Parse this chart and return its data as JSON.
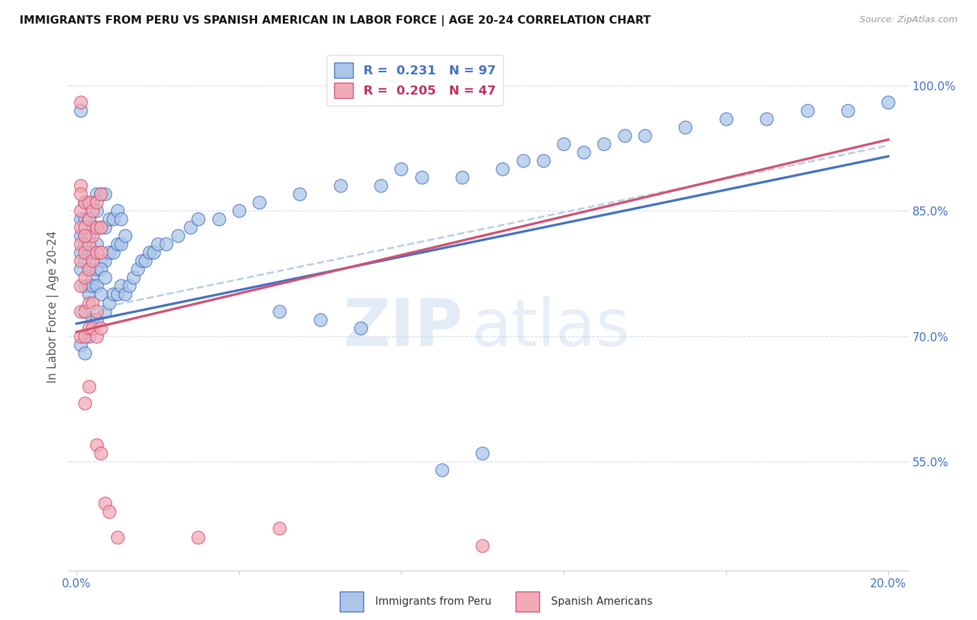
{
  "title": "IMMIGRANTS FROM PERU VS SPANISH AMERICAN IN LABOR FORCE | AGE 20-24 CORRELATION CHART",
  "source": "Source: ZipAtlas.com",
  "ylabel": "In Labor Force | Age 20-24",
  "xlim": [
    -0.002,
    0.205
  ],
  "ylim": [
    0.42,
    1.05
  ],
  "yticks": [
    0.55,
    0.7,
    0.85,
    1.0
  ],
  "ytick_labels": [
    "55.0%",
    "70.0%",
    "85.0%",
    "100.0%"
  ],
  "xtick_labels_left": "0.0%",
  "xtick_labels_right": "20.0%",
  "r_blue": 0.231,
  "n_blue": 97,
  "r_pink": 0.205,
  "n_pink": 47,
  "legend_label_blue": "Immigrants from Peru",
  "legend_label_pink": "Spanish Americans",
  "blue_fill": "#adc6e8",
  "blue_edge": "#4472c4",
  "pink_fill": "#f2aab8",
  "pink_edge": "#d45070",
  "line_blue_color": "#4472c4",
  "line_pink_color": "#d45070",
  "line_dashed_color": "#b8cfe8",
  "line_y0_blue": 0.715,
  "line_y1_blue": 0.915,
  "line_y0_pink": 0.705,
  "line_y1_pink": 0.935,
  "line_y0_dash": 0.728,
  "line_y1_dash": 0.928,
  "blue_x": [
    0.001,
    0.001,
    0.001,
    0.001,
    0.001,
    0.002,
    0.002,
    0.002,
    0.002,
    0.002,
    0.002,
    0.003,
    0.003,
    0.003,
    0.003,
    0.003,
    0.004,
    0.004,
    0.004,
    0.004,
    0.005,
    0.005,
    0.005,
    0.005,
    0.006,
    0.006,
    0.006,
    0.007,
    0.007,
    0.007,
    0.008,
    0.008,
    0.009,
    0.009,
    0.01,
    0.01,
    0.011,
    0.011,
    0.012,
    0.001,
    0.002,
    0.002,
    0.003,
    0.003,
    0.004,
    0.004,
    0.005,
    0.005,
    0.006,
    0.006,
    0.007,
    0.007,
    0.008,
    0.009,
    0.01,
    0.011,
    0.012,
    0.013,
    0.014,
    0.015,
    0.016,
    0.017,
    0.018,
    0.019,
    0.02,
    0.022,
    0.025,
    0.028,
    0.03,
    0.035,
    0.04,
    0.045,
    0.05,
    0.055,
    0.06,
    0.065,
    0.07,
    0.075,
    0.08,
    0.085,
    0.09,
    0.095,
    0.1,
    0.105,
    0.11,
    0.115,
    0.12,
    0.125,
    0.13,
    0.135,
    0.14,
    0.15,
    0.16,
    0.17,
    0.18,
    0.19,
    0.2
  ],
  "blue_y": [
    0.78,
    0.8,
    0.82,
    0.84,
    0.97,
    0.76,
    0.79,
    0.81,
    0.82,
    0.84,
    0.86,
    0.76,
    0.78,
    0.8,
    0.82,
    0.84,
    0.77,
    0.8,
    0.83,
    0.86,
    0.78,
    0.81,
    0.85,
    0.87,
    0.79,
    0.83,
    0.87,
    0.79,
    0.83,
    0.87,
    0.8,
    0.84,
    0.8,
    0.84,
    0.81,
    0.85,
    0.81,
    0.84,
    0.82,
    0.69,
    0.68,
    0.73,
    0.7,
    0.75,
    0.72,
    0.76,
    0.72,
    0.76,
    0.75,
    0.78,
    0.73,
    0.77,
    0.74,
    0.75,
    0.75,
    0.76,
    0.75,
    0.76,
    0.77,
    0.78,
    0.79,
    0.79,
    0.8,
    0.8,
    0.81,
    0.81,
    0.82,
    0.83,
    0.84,
    0.84,
    0.85,
    0.86,
    0.73,
    0.87,
    0.72,
    0.88,
    0.71,
    0.88,
    0.9,
    0.89,
    0.54,
    0.89,
    0.56,
    0.9,
    0.91,
    0.91,
    0.93,
    0.92,
    0.93,
    0.94,
    0.94,
    0.95,
    0.96,
    0.96,
    0.97,
    0.97,
    0.98
  ],
  "pink_x": [
    0.001,
    0.001,
    0.001,
    0.001,
    0.001,
    0.001,
    0.001,
    0.002,
    0.002,
    0.002,
    0.002,
    0.003,
    0.003,
    0.003,
    0.003,
    0.004,
    0.004,
    0.004,
    0.005,
    0.005,
    0.005,
    0.006,
    0.006,
    0.006,
    0.001,
    0.001,
    0.002,
    0.002,
    0.003,
    0.003,
    0.004,
    0.004,
    0.005,
    0.005,
    0.006,
    0.001,
    0.002,
    0.002,
    0.003,
    0.005,
    0.006,
    0.007,
    0.008,
    0.01,
    0.03,
    0.05,
    0.1
  ],
  "pink_y": [
    0.76,
    0.79,
    0.81,
    0.83,
    0.85,
    0.88,
    0.98,
    0.77,
    0.8,
    0.83,
    0.86,
    0.78,
    0.81,
    0.84,
    0.86,
    0.79,
    0.82,
    0.85,
    0.8,
    0.83,
    0.86,
    0.8,
    0.83,
    0.87,
    0.7,
    0.73,
    0.7,
    0.73,
    0.71,
    0.74,
    0.71,
    0.74,
    0.7,
    0.73,
    0.71,
    0.87,
    0.82,
    0.62,
    0.64,
    0.57,
    0.56,
    0.5,
    0.49,
    0.46,
    0.46,
    0.47,
    0.45
  ]
}
